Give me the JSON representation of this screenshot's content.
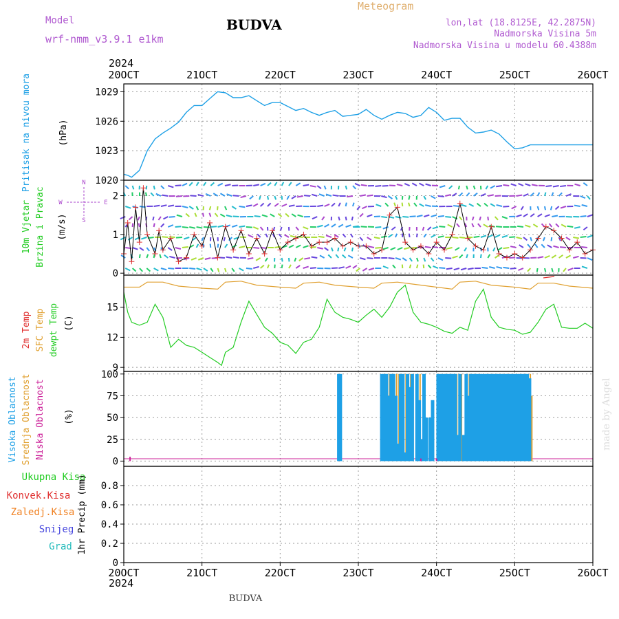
{
  "header": {
    "model_label": "Model",
    "model_name": "wrf-nmm_v3.9.1 e1km",
    "title": "BUDVA",
    "meteogram_label": "Meteogram",
    "lonlat": "lon,lat (18.8125E, 42.2875N)",
    "elevation": "Nadmorska Visina 5m",
    "model_elevation": "Nadmorska Visina u modelu 60.4388m",
    "footer_title": "BUDVA",
    "credit": "made by Angel",
    "year_top": "2024",
    "year_bottom": "2024"
  },
  "colors": {
    "pressure": "#1ea0e6",
    "temp2m": "#e03030",
    "sfc_temp": "#e0a030",
    "dewpt": "#22cc22",
    "cloud_high": "#1ea0e6",
    "cloud_mid": "#e0a030",
    "cloud_low": "#cc2299",
    "precip_total": "#22cc22",
    "precip_conv": "#e03030",
    "precip_frozen": "#f08020",
    "snow": "#4444dd",
    "hail": "#22bbbb",
    "wind_dir": "#aa44cc"
  },
  "chart_data": [
    {
      "type": "line",
      "name": "pressure",
      "ylabel_main": "Pritisak na nivou mora",
      "ylabel_unit": "(hPa)",
      "ylim": [
        1020,
        1029.8
      ],
      "yticks": [
        1020,
        1023,
        1026,
        1029
      ],
      "x_day": [
        0,
        0.05,
        0.1,
        0.2,
        0.3,
        0.4,
        0.5,
        0.6,
        0.7,
        0.8,
        0.9,
        1.0,
        1.1,
        1.2,
        1.3,
        1.4,
        1.5,
        1.6,
        1.7,
        1.8,
        1.9,
        2.0,
        2.1,
        2.2,
        2.3,
        2.4,
        2.5,
        2.6,
        2.7,
        2.8,
        2.9,
        3.0,
        3.1,
        3.2,
        3.3,
        3.4,
        3.5,
        3.6,
        3.7,
        3.8,
        3.9,
        4.0,
        4.1,
        4.2,
        4.3,
        4.4,
        4.5,
        4.6,
        4.7,
        4.8,
        4.9,
        5.0,
        5.1,
        5.2,
        5.3,
        5.4,
        5.5,
        5.6,
        5.7,
        5.8,
        5.9,
        6.0
      ],
      "values": [
        1020.6,
        1020.5,
        1020.3,
        1021.0,
        1023.0,
        1024.2,
        1024.8,
        1025.3,
        1025.9,
        1026.9,
        1027.6,
        1027.6,
        1028.3,
        1029.0,
        1028.9,
        1028.4,
        1028.4,
        1028.6,
        1028.1,
        1027.6,
        1027.9,
        1027.9,
        1027.5,
        1027.1,
        1027.3,
        1026.9,
        1026.6,
        1026.9,
        1027.1,
        1026.5,
        1026.6,
        1026.7,
        1027.2,
        1026.6,
        1026.2,
        1026.6,
        1026.9,
        1026.8,
        1026.4,
        1026.6,
        1027.4,
        1026.9,
        1026.1,
        1026.3,
        1026.3,
        1025.4,
        1024.8,
        1024.9,
        1025.1,
        1024.7,
        1023.9,
        1023.2,
        1023.3,
        1023.6,
        1023.6,
        1023.6,
        1023.6,
        1023.6,
        1023.6,
        1023.6,
        1023.6,
        1023.6
      ]
    },
    {
      "type": "line",
      "name": "wind",
      "ylabel_main": "10m Vjetar",
      "ylabel_sub": "Brzina i Pravac",
      "ylabel_unit": "(m/s)",
      "compass_n": "N",
      "compass_w": "W",
      "compass_e": "E",
      "compass_s": "S",
      "ylim": [
        -0.05,
        2.4
      ],
      "yticks": [
        0,
        1,
        2
      ],
      "x_day": [
        0,
        0.05,
        0.1,
        0.15,
        0.2,
        0.25,
        0.3,
        0.4,
        0.45,
        0.5,
        0.6,
        0.7,
        0.8,
        0.9,
        1.0,
        1.1,
        1.2,
        1.3,
        1.4,
        1.5,
        1.6,
        1.7,
        1.8,
        1.9,
        2.0,
        2.1,
        2.2,
        2.3,
        2.4,
        2.5,
        2.6,
        2.7,
        2.8,
        2.9,
        3.0,
        3.1,
        3.2,
        3.3,
        3.4,
        3.5,
        3.6,
        3.7,
        3.8,
        3.9,
        4.0,
        4.1,
        4.2,
        4.3,
        4.4,
        4.5,
        4.6,
        4.7,
        4.8,
        4.9,
        5.0,
        5.1,
        5.2,
        5.3,
        5.4,
        5.5,
        5.6,
        5.7,
        5.8,
        5.9,
        6.0
      ],
      "values": [
        0.5,
        1.3,
        0.3,
        1.7,
        0.8,
        2.2,
        1.0,
        0.5,
        1.1,
        0.6,
        0.9,
        0.3,
        0.4,
        1.0,
        0.7,
        1.3,
        0.4,
        1.2,
        0.6,
        1.1,
        0.5,
        0.9,
        0.5,
        1.1,
        0.6,
        0.8,
        0.9,
        1.0,
        0.7,
        0.8,
        0.8,
        0.9,
        0.7,
        0.8,
        0.7,
        0.7,
        0.5,
        0.6,
        1.5,
        1.7,
        0.8,
        0.6,
        0.7,
        0.5,
        0.8,
        0.6,
        1.0,
        1.8,
        0.9,
        0.7,
        0.6,
        1.2,
        0.5,
        0.4,
        0.5,
        0.4,
        0.6,
        0.9,
        1.2,
        1.1,
        0.9,
        0.6,
        0.8,
        0.5,
        0.6
      ]
    },
    {
      "type": "line",
      "name": "temperature",
      "ylabel_t2m": "2m Temp",
      "ylabel_sfc": "SFC Temp",
      "ylabel_dew": "dewpt Temp",
      "ylabel_unit": "(C)",
      "ylim": [
        8.6,
        18.2
      ],
      "yticks": [
        9,
        12,
        15
      ],
      "series": [
        {
          "key": "sfc",
          "x_day": [
            0,
            0.2,
            0.3,
            0.5,
            0.7,
            1.0,
            1.2,
            1.3,
            1.5,
            1.7,
            2.0,
            2.2,
            2.3,
            2.5,
            2.7,
            3.0,
            3.2,
            3.3,
            3.5,
            3.7,
            4.0,
            4.2,
            4.3,
            4.5,
            4.7,
            5.0,
            5.2,
            5.3,
            5.5,
            5.7,
            6.0
          ],
          "values": [
            17.0,
            17.0,
            17.5,
            17.5,
            17.1,
            16.9,
            16.8,
            17.5,
            17.6,
            17.2,
            17.0,
            16.9,
            17.4,
            17.5,
            17.2,
            17.0,
            16.9,
            17.4,
            17.5,
            17.3,
            17.0,
            16.8,
            17.5,
            17.6,
            17.2,
            17.0,
            16.8,
            17.4,
            17.4,
            17.1,
            16.9
          ]
        },
        {
          "key": "dewpt",
          "x_day": [
            0,
            0.05,
            0.1,
            0.2,
            0.3,
            0.4,
            0.5,
            0.6,
            0.7,
            0.8,
            0.9,
            1.0,
            1.1,
            1.2,
            1.25,
            1.3,
            1.4,
            1.5,
            1.6,
            1.7,
            1.8,
            1.9,
            2.0,
            2.1,
            2.2,
            2.3,
            2.4,
            2.5,
            2.6,
            2.7,
            2.8,
            2.9,
            3.0,
            3.1,
            3.2,
            3.3,
            3.4,
            3.5,
            3.6,
            3.7,
            3.8,
            3.9,
            4.0,
            4.1,
            4.2,
            4.3,
            4.4,
            4.5,
            4.6,
            4.7,
            4.8,
            4.9,
            5.0,
            5.1,
            5.2,
            5.3,
            5.4,
            5.5,
            5.6,
            5.7,
            5.8,
            5.9,
            6.0
          ],
          "values": [
            16.5,
            14.5,
            13.5,
            13.2,
            13.5,
            15.3,
            14.0,
            11.0,
            11.8,
            11.2,
            11.0,
            10.5,
            10.0,
            9.5,
            9.2,
            10.5,
            11.0,
            13.5,
            15.6,
            14.3,
            13.0,
            12.4,
            11.5,
            11.2,
            10.4,
            11.5,
            11.8,
            13.0,
            15.8,
            14.5,
            14.0,
            13.8,
            13.5,
            14.2,
            14.8,
            14.0,
            15.0,
            16.5,
            17.2,
            14.5,
            13.5,
            13.3,
            13.0,
            12.6,
            12.4,
            13.0,
            12.7,
            15.6,
            16.8,
            14.0,
            13.0,
            12.8,
            12.7,
            12.3,
            12.5,
            13.5,
            14.8,
            15.3,
            13.0,
            12.9,
            12.9,
            13.4,
            12.9
          ]
        }
      ]
    },
    {
      "type": "bar",
      "name": "cloud",
      "ylabel_high": "Visoka Oblacnost",
      "ylabel_mid": "Srednja Oblacnost",
      "ylabel_low": "Niska Oblacnost",
      "ylabel_unit": "(%)",
      "ylim": [
        -6,
        103
      ],
      "yticks": [
        0,
        25,
        50,
        75,
        100
      ],
      "series": [
        {
          "key": "high",
          "x_day": [
            2.75,
            2.77,
            3.3,
            3.33,
            3.36,
            3.39,
            3.42,
            3.45,
            3.48,
            3.51,
            3.54,
            3.57,
            3.6,
            3.63,
            3.66,
            3.69,
            3.75,
            3.78,
            3.81,
            3.84,
            3.87,
            3.92,
            3.95,
            4.02,
            4.06,
            4.09,
            4.12,
            4.15,
            4.18,
            4.21,
            4.24,
            4.27,
            4.3,
            4.35,
            4.38,
            4.41,
            4.44,
            4.47,
            4.5,
            4.53,
            4.56,
            4.59,
            4.62,
            4.65,
            4.68,
            4.71,
            4.74,
            4.77,
            4.8,
            4.83,
            4.86,
            4.89,
            4.92,
            4.95,
            4.98,
            5.01,
            5.04,
            5.07,
            5.1,
            5.13,
            5.16,
            5.19
          ],
          "values": [
            100,
            100,
            100,
            100,
            100,
            75,
            100,
            100,
            75,
            20,
            100,
            100,
            10,
            100,
            85,
            100,
            100,
            70,
            25,
            100,
            50,
            50,
            70,
            100,
            100,
            100,
            100,
            100,
            100,
            100,
            100,
            30,
            100,
            30,
            100,
            75,
            100,
            100,
            100,
            100,
            100,
            100,
            100,
            100,
            100,
            100,
            100,
            100,
            100,
            100,
            100,
            100,
            100,
            100,
            100,
            100,
            100,
            100,
            100,
            100,
            100,
            95
          ]
        },
        {
          "key": "mid",
          "x_day": [
            3.31,
            3.34,
            3.37,
            3.4,
            3.43,
            3.46,
            3.49,
            3.52,
            3.55,
            3.58,
            3.61,
            3.64,
            3.67,
            3.7,
            3.76,
            3.79,
            4.05,
            4.08,
            4.11,
            4.14,
            4.17,
            4.2,
            4.23,
            4.26,
            4.29,
            4.32,
            4.42,
            4.45,
            4.48,
            4.51,
            4.54,
            4.57,
            4.6,
            4.63,
            4.66,
            4.69,
            4.72,
            4.75,
            4.78,
            4.81,
            4.84,
            4.87,
            4.9,
            4.93,
            4.96,
            4.99,
            5.02,
            5.05,
            5.08,
            5.11,
            5.14,
            5.17,
            5.2,
            5.22
          ],
          "values": [
            100,
            100,
            100,
            100,
            100,
            100,
            100,
            100,
            100,
            100,
            100,
            100,
            100,
            100,
            100,
            100,
            100,
            100,
            100,
            100,
            100,
            100,
            100,
            100,
            100,
            100,
            100,
            100,
            100,
            100,
            100,
            100,
            100,
            100,
            100,
            100,
            100,
            100,
            100,
            100,
            100,
            100,
            100,
            100,
            100,
            100,
            100,
            100,
            100,
            100,
            100,
            100,
            100,
            75
          ]
        },
        {
          "key": "low",
          "x_day": [
            0.08,
            3.8,
            4.0
          ],
          "values": [
            5,
            3,
            3
          ]
        }
      ]
    },
    {
      "type": "bar",
      "name": "precip",
      "ylabel_main": "1hr Precip",
      "ylabel_unit": "(mm)",
      "ylim": [
        0,
        1.0
      ],
      "yticks": [
        0,
        0.2,
        0.4,
        0.6,
        0.8
      ],
      "legend_total": "Ukupna Kisa",
      "legend_conv": "Konvek.Kisa",
      "legend_frozen": "Zaledj.Kisa",
      "legend_snow": "Snijeg",
      "legend_hail": "Grad",
      "values": []
    }
  ],
  "x_axis": {
    "day_ticks": [
      "20OCT",
      "21OCT",
      "22OCT",
      "23OCT",
      "24OCT",
      "25OCT",
      "26OCT"
    ]
  }
}
